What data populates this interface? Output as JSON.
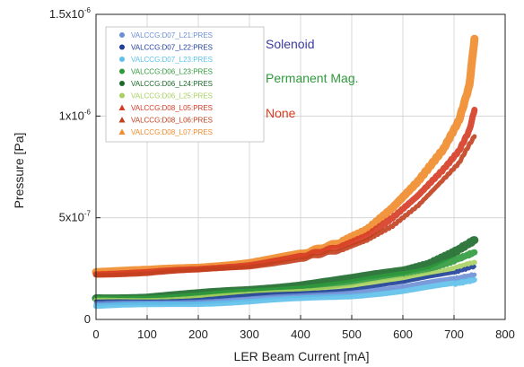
{
  "chart_data": {
    "type": "scatter",
    "xlabel": "LER Beam Current [mA]",
    "ylabel": "Pressure [Pa]",
    "xlim": [
      0,
      800
    ],
    "ylim": [
      0,
      1.5e-06
    ],
    "x_ticks": [
      "0",
      "100",
      "200",
      "300",
      "400",
      "500",
      "600",
      "700",
      "800"
    ],
    "y_ticks": [
      {
        "base": "0",
        "exp": ""
      },
      {
        "base": "5x10",
        "exp": "-7"
      },
      {
        "base": "1x10",
        "exp": "-6"
      },
      {
        "base": "1.5x10",
        "exp": "-6"
      }
    ],
    "legend": [
      {
        "label": "VALCCG:D07_L21:PRES",
        "color": "#6b8fd6",
        "marker": "circle"
      },
      {
        "label": "VALCCG:D07_L22:PRES",
        "color": "#1f3f9c",
        "marker": "circle"
      },
      {
        "label": "VALCCG:D07_L23:PRES",
        "color": "#5fc0ea",
        "marker": "circle"
      },
      {
        "label": "VALCCG:D06_L23:PRES",
        "color": "#2e9a3c",
        "marker": "circle"
      },
      {
        "label": "VALCCG:D06_L24:PRES",
        "color": "#1c6a2a",
        "marker": "circle"
      },
      {
        "label": "VALCCG:D06_L25:PRES",
        "color": "#a8d060",
        "marker": "circle"
      },
      {
        "label": "VALCCG:D08_L05:PRES",
        "color": "#d63a24",
        "marker": "triangle"
      },
      {
        "label": "VALCCG:D08_L06:PRES",
        "color": "#c2401e",
        "marker": "triangle"
      },
      {
        "label": "VALCCG:D08_L07:PRES",
        "color": "#f08a2a",
        "marker": "triangle"
      }
    ],
    "groups": [
      {
        "label": "Solenoid",
        "color": "#3b3aa0"
      },
      {
        "label": "Permanent Mag.",
        "color": "#2e9a3c"
      },
      {
        "label": "None",
        "color": "#e0381e"
      }
    ],
    "series": [
      {
        "name": "VALCCG:D08_L07:PRES",
        "color": "#f08a2a",
        "width": 9,
        "x": [
          0,
          100,
          200,
          300,
          400,
          480,
          530,
          580,
          630,
          680,
          710,
          730,
          740
        ],
        "y": [
          2.35e-07,
          2.4e-07,
          2.55e-07,
          2.8e-07,
          3.2e-07,
          3.8e-07,
          4.4e-07,
          5.5e-07,
          6.8e-07,
          8.4e-07,
          9.8e-07,
          1.15e-06,
          1.38e-06
        ]
      },
      {
        "name": "VALCCG:D08_L05:PRES",
        "color": "#d63a24",
        "width": 7,
        "x": [
          0,
          100,
          200,
          300,
          400,
          480,
          530,
          580,
          630,
          680,
          710,
          730,
          740
        ],
        "y": [
          2.25e-07,
          2.3e-07,
          2.45e-07,
          2.7e-07,
          3.1e-07,
          3.6e-07,
          4.1e-07,
          5e-07,
          6.1e-07,
          7.4e-07,
          8.3e-07,
          9.3e-07,
          1.03e-06
        ]
      },
      {
        "name": "VALCCG:D08_L06:PRES",
        "color": "#c2401e",
        "width": 5,
        "x": [
          0,
          100,
          200,
          300,
          400,
          480,
          530,
          580,
          630,
          680,
          710,
          730,
          740
        ],
        "y": [
          2.2e-07,
          2.25e-07,
          2.4e-07,
          2.6e-07,
          2.95e-07,
          3.4e-07,
          3.9e-07,
          4.6e-07,
          5.6e-07,
          6.9e-07,
          7.7e-07,
          8.6e-07,
          9e-07
        ]
      },
      {
        "name": "VALCCG:D06_L24:PRES",
        "color": "#1c6a2a",
        "width": 9,
        "x": [
          0,
          100,
          200,
          300,
          400,
          500,
          600,
          650,
          700,
          740
        ],
        "y": [
          1.05e-07,
          1.1e-07,
          1.25e-07,
          1.45e-07,
          1.7e-07,
          2e-07,
          2.4e-07,
          2.7e-07,
          3.3e-07,
          3.9e-07
        ]
      },
      {
        "name": "VALCCG:D06_L23:PRES",
        "color": "#2e9a3c",
        "width": 7,
        "x": [
          0,
          100,
          200,
          300,
          400,
          500,
          600,
          650,
          700,
          740
        ],
        "y": [
          1e-07,
          1.05e-07,
          1.15e-07,
          1.35e-07,
          1.55e-07,
          1.8e-07,
          2.2e-07,
          2.45e-07,
          2.9e-07,
          3.3e-07
        ]
      },
      {
        "name": "VALCCG:D06_L25:PRES",
        "color": "#a8d060",
        "width": 6,
        "x": [
          0,
          100,
          200,
          300,
          400,
          500,
          600,
          650,
          700,
          740
        ],
        "y": [
          9e-08,
          9.5e-08,
          1.05e-07,
          1.2e-07,
          1.4e-07,
          1.6e-07,
          1.95e-07,
          2.2e-07,
          2.5e-07,
          2.8e-07
        ]
      },
      {
        "name": "VALCCG:D07_L22:PRES",
        "color": "#1f3f9c",
        "width": 4,
        "x": [
          0,
          100,
          200,
          300,
          400,
          500,
          600,
          700,
          740
        ],
        "y": [
          8.5e-08,
          9e-08,
          1e-07,
          1.15e-07,
          1.3e-07,
          1.5e-07,
          1.8e-07,
          2.3e-07,
          2.6e-07
        ]
      },
      {
        "name": "VALCCG:D07_L21:PRES",
        "color": "#6b8fd6",
        "width": 5,
        "x": [
          0,
          100,
          200,
          300,
          400,
          500,
          600,
          700,
          740
        ],
        "y": [
          7.5e-08,
          8e-08,
          9e-08,
          1e-07,
          1.15e-07,
          1.35e-07,
          1.6e-07,
          2e-07,
          2.2e-07
        ]
      },
      {
        "name": "VALCCG:D07_L23:PRES",
        "color": "#5fc0ea",
        "width": 6,
        "x": [
          0,
          100,
          200,
          300,
          400,
          500,
          600,
          700,
          740
        ],
        "y": [
          6.5e-08,
          7e-08,
          7.8e-08,
          8.8e-08,
          1e-07,
          1.15e-07,
          1.4e-07,
          1.75e-07,
          1.95e-07
        ]
      }
    ]
  }
}
